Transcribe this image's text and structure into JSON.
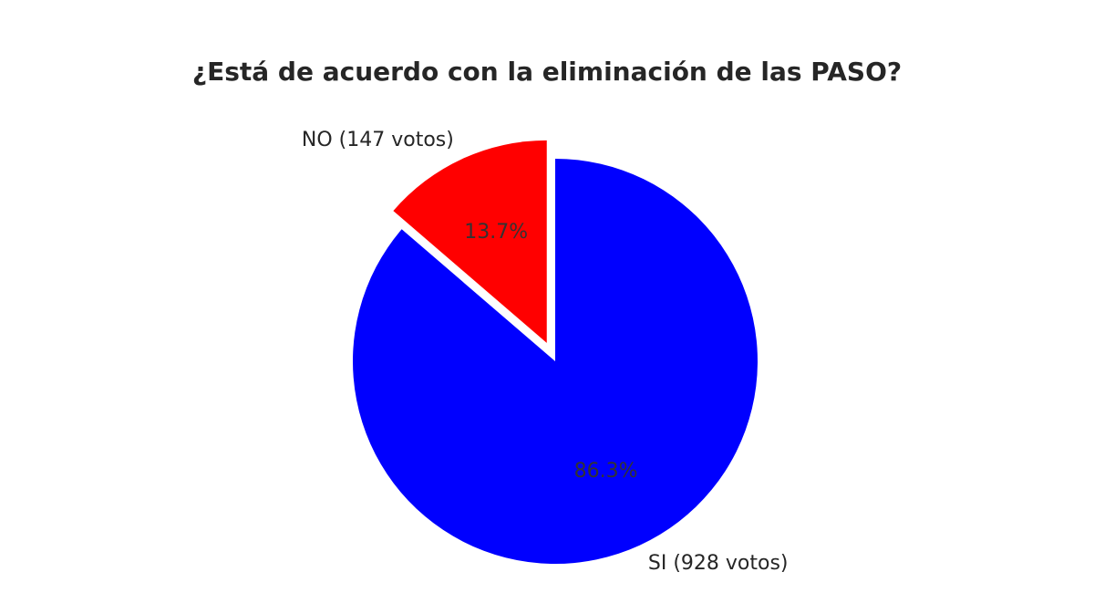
{
  "chart_data": {
    "type": "pie",
    "title": "¿Está de acuerdo con la eliminación de las PASO?",
    "categories": [
      "SI (928 votos)",
      "NO (147 votos)"
    ],
    "values": [
      86.3,
      13.7
    ],
    "value_labels": [
      "86.3%",
      "13.7%"
    ],
    "colors": [
      "#0000ff",
      "#ff0000"
    ],
    "explode": [
      0,
      0.1
    ]
  }
}
